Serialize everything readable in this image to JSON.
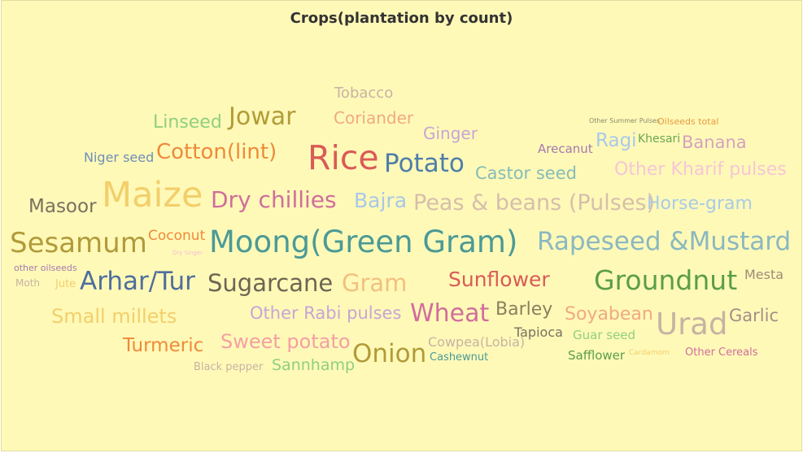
{
  "chart_data": {
    "type": "word-cloud",
    "title": "Crops(plantation by count)",
    "words": [
      {
        "text": "Tobacco",
        "color": "#c6b3a3"
      },
      {
        "text": "Linseed",
        "color": "#8fd07e"
      },
      {
        "text": "Jowar",
        "color": "#b19c38"
      },
      {
        "text": "Coriander",
        "color": "#f0aa7f"
      },
      {
        "text": "Other Summer Pulses",
        "color": "#8a8a6a"
      },
      {
        "text": "Oilseeds total",
        "color": "#e69a3d"
      },
      {
        "text": "Ginger",
        "color": "#c6a5d6"
      },
      {
        "text": "Niger seed",
        "color": "#6f8fb6"
      },
      {
        "text": "Cotton(lint)",
        "color": "#ee8a3a"
      },
      {
        "text": "Rice",
        "color": "#d95b57"
      },
      {
        "text": "Potato",
        "color": "#4e7eaa"
      },
      {
        "text": "Arecanut",
        "color": "#a47ab0"
      },
      {
        "text": "Ragi",
        "color": "#a9c9e8"
      },
      {
        "text": "Khesari",
        "color": "#6aa84f"
      },
      {
        "text": "Banana",
        "color": "#d4a2bf"
      },
      {
        "text": "Castor seed",
        "color": "#86bcb6"
      },
      {
        "text": "Other Kharif pulses",
        "color": "#f6c6d6"
      },
      {
        "text": "Masoor",
        "color": "#7a7060"
      },
      {
        "text": "Maize",
        "color": "#f2cf6b"
      },
      {
        "text": "Dry chillies",
        "color": "#cf6e9c"
      },
      {
        "text": "Bajra",
        "color": "#a8c8e8"
      },
      {
        "text": "Peas & beans (Pulses)",
        "color": "#d6bfab"
      },
      {
        "text": "Horse-gram",
        "color": "#a8cbe7"
      },
      {
        "text": "Sesamum",
        "color": "#b19a3a"
      },
      {
        "text": "Coconut",
        "color": "#ee8a3a"
      },
      {
        "text": "Dry Singer",
        "color": "#f4c0d0"
      },
      {
        "text": "Moong(Green Gram)",
        "color": "#4b9a96"
      },
      {
        "text": "Rapeseed &Mustard",
        "color": "#8ab8c0"
      },
      {
        "text": "other oilseeds",
        "color": "#a47ab0"
      },
      {
        "text": "Moth",
        "color": "#c6b3a3"
      },
      {
        "text": "Jute",
        "color": "#f2cf6b"
      },
      {
        "text": "Arhar/Tur",
        "color": "#4e6e9c"
      },
      {
        "text": "Sugarcane",
        "color": "#6d6553"
      },
      {
        "text": "Gram",
        "color": "#f2c07f"
      },
      {
        "text": "Sunflower",
        "color": "#d95b57"
      },
      {
        "text": "Groundnut",
        "color": "#5a9e48"
      },
      {
        "text": "Mesta",
        "color": "#9c8c78"
      },
      {
        "text": "Small millets",
        "color": "#f2cf6b"
      },
      {
        "text": "Other Rabi pulses",
        "color": "#c6a5d6"
      },
      {
        "text": "Wheat",
        "color": "#cf6e9c"
      },
      {
        "text": "Barley",
        "color": "#8c7f5e"
      },
      {
        "text": "Soyabean",
        "color": "#f0aa7f"
      },
      {
        "text": "Urad",
        "color": "#c6b3a3"
      },
      {
        "text": "Garlic",
        "color": "#a48e88"
      },
      {
        "text": "Turmeric",
        "color": "#ee8a3a"
      },
      {
        "text": "Sweet potato",
        "color": "#f4a0a4"
      },
      {
        "text": "Cowpea(Lobia)",
        "color": "#c6b3a3"
      },
      {
        "text": "Tapioca",
        "color": "#7a7060"
      },
      {
        "text": "Guar seed",
        "color": "#8fd07e"
      },
      {
        "text": "Onion",
        "color": "#b19a3a"
      },
      {
        "text": "Cashewnut",
        "color": "#4b9a96"
      },
      {
        "text": "Safflower",
        "color": "#5a9e48"
      },
      {
        "text": "Cardamom",
        "color": "#f2cf6b"
      },
      {
        "text": "Other Cereals",
        "color": "#cf6e9c"
      },
      {
        "text": "Black pepper",
        "color": "#c6b3a3"
      },
      {
        "text": "Sannhamp",
        "color": "#8fd07e"
      }
    ]
  }
}
